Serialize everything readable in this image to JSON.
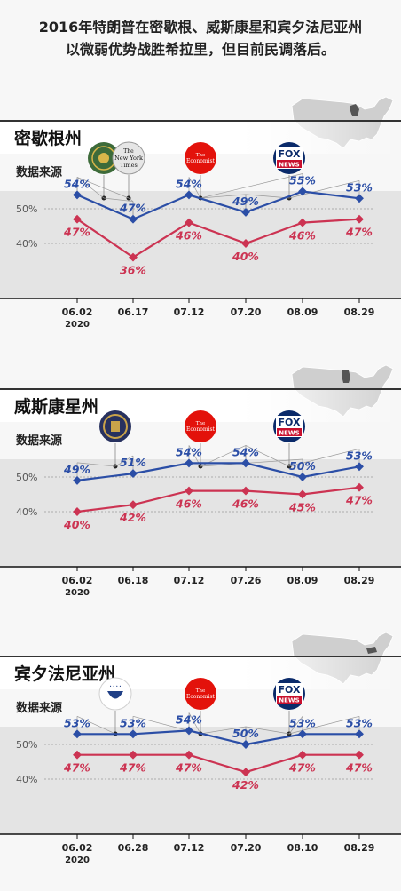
{
  "headline": [
    "2016年特朗普在密歇根、威斯康星和宾夕法尼亚州",
    "以微弱优势战胜希拉里，但目前民调落后。"
  ],
  "colors": {
    "blue": "#2b4ea6",
    "red": "#cc3352",
    "axis": "#111111",
    "label": "#555555",
    "band": "#e4e4e4"
  },
  "panels": [
    {
      "state": "密歇根州",
      "source_label": "数据来源",
      "map_highlight": "michigan",
      "sources": [
        {
          "icon": "seal-logo-icon"
        },
        {
          "icon": "new-york-times-logo-icon",
          "text": [
            "The",
            "New York",
            "Times"
          ]
        },
        {
          "icon": "economist-logo-icon",
          "text": [
            "The",
            "Economist"
          ]
        },
        {
          "icon": "fox-news-logo-icon",
          "text": [
            "FOX",
            "NEWS"
          ]
        }
      ],
      "chart_data": {
        "type": "line",
        "categories": [
          "06.02",
          "06.17",
          "07.12",
          "07.20",
          "08.09",
          "08.29"
        ],
        "year_label": "2020",
        "ytick_labels": [
          "50%",
          "40%"
        ],
        "series": [
          {
            "values": [
              54,
              47,
              54,
              49,
              55,
              53
            ],
            "labels": [
              "54%",
              "47%",
              "54%",
              "49%",
              "55%",
              "53%"
            ]
          },
          {
            "values": [
              47,
              36,
              46,
              40,
              46,
              47
            ],
            "labels": [
              "47%",
              "36%",
              "46%",
              "40%",
              "46%",
              "47%"
            ]
          }
        ]
      }
    },
    {
      "state": "威斯康星州",
      "source_label": "数据来源",
      "map_highlight": "wisconsin",
      "sources": [
        {
          "icon": "university-seal-logo-icon"
        },
        {
          "icon": "economist-logo-icon",
          "text": [
            "The",
            "Economist"
          ]
        },
        {
          "icon": "fox-news-logo-icon",
          "text": [
            "FOX",
            "NEWS"
          ]
        }
      ],
      "chart_data": {
        "type": "line",
        "categories": [
          "06.02",
          "06.18",
          "07.12",
          "07.26",
          "08.09",
          "08.29"
        ],
        "year_label": "2020",
        "ytick_labels": [
          "50%",
          "40%"
        ],
        "series": [
          {
            "values": [
              49,
              51,
              54,
              54,
              50,
              53
            ],
            "labels": [
              "49%",
              "51%",
              "54%",
              "54%",
              "50%",
              "53%"
            ]
          },
          {
            "values": [
              40,
              42,
              46,
              46,
              45,
              47
            ],
            "labels": [
              "40%",
              "42%",
              "46%",
              "46%",
              "45%",
              "47%"
            ]
          }
        ]
      }
    },
    {
      "state": "宾夕法尼亚州",
      "source_label": "数据来源",
      "map_highlight": "pennsylvania",
      "sources": [
        {
          "icon": "globe-seal-logo-icon"
        },
        {
          "icon": "economist-logo-icon",
          "text": [
            "The",
            "Economist"
          ]
        },
        {
          "icon": "fox-news-logo-icon",
          "text": [
            "FOX",
            "NEWS"
          ]
        }
      ],
      "chart_data": {
        "type": "line",
        "categories": [
          "06.02",
          "06.28",
          "07.12",
          "07.20",
          "08.10",
          "08.29"
        ],
        "year_label": "2020",
        "ytick_labels": [
          "50%",
          "40%"
        ],
        "series": [
          {
            "values": [
              53,
              53,
              54,
              50,
              53,
              53
            ],
            "labels": [
              "53%",
              "53%",
              "54%",
              "50%",
              "53%",
              "53%"
            ]
          },
          {
            "values": [
              47,
              47,
              47,
              42,
              47,
              47
            ],
            "labels": [
              "47%",
              "47%",
              "47%",
              "42%",
              "47%",
              "47%"
            ]
          }
        ]
      }
    }
  ]
}
